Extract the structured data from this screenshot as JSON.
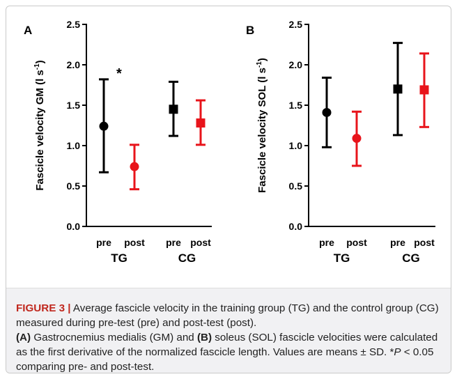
{
  "chart_data": [
    {
      "type": "scatter",
      "panel_label": "A",
      "ylabel_main": "Fascicle velocity GM (l s",
      "ylabel_sup": "-1",
      "ylabel_close": ")",
      "ylim": [
        0.0,
        2.5
      ],
      "yticks": [
        "0.0",
        "0.5",
        "1.0",
        "1.5",
        "2.0",
        "2.5"
      ],
      "groups": [
        "TG",
        "CG"
      ],
      "conditions": [
        "pre",
        "post"
      ],
      "points": [
        {
          "group": "TG",
          "condition": "pre",
          "mean": 1.24,
          "sd_low": 0.67,
          "sd_high": 1.82,
          "color": "#000000",
          "marker": "circle"
        },
        {
          "group": "TG",
          "condition": "post",
          "mean": 0.74,
          "sd_low": 0.46,
          "sd_high": 1.01,
          "color": "#e8141b",
          "marker": "circle"
        },
        {
          "group": "CG",
          "condition": "pre",
          "mean": 1.45,
          "sd_low": 1.12,
          "sd_high": 1.79,
          "color": "#000000",
          "marker": "square"
        },
        {
          "group": "CG",
          "condition": "post",
          "mean": 1.28,
          "sd_low": 1.01,
          "sd_high": 1.56,
          "color": "#e8141b",
          "marker": "square"
        }
      ],
      "annotation": "*"
    },
    {
      "type": "scatter",
      "panel_label": "B",
      "ylabel_main": "Fascicle velocity SOL (l s",
      "ylabel_sup": "-1",
      "ylabel_close": ")",
      "ylim": [
        0.0,
        2.5
      ],
      "yticks": [
        "0.0",
        "0.5",
        "1.0",
        "1.5",
        "2.0",
        "2.5"
      ],
      "groups": [
        "TG",
        "CG"
      ],
      "conditions": [
        "pre",
        "post"
      ],
      "points": [
        {
          "group": "TG",
          "condition": "pre",
          "mean": 1.41,
          "sd_low": 0.98,
          "sd_high": 1.84,
          "color": "#000000",
          "marker": "circle"
        },
        {
          "group": "TG",
          "condition": "post",
          "mean": 1.09,
          "sd_low": 0.75,
          "sd_high": 1.42,
          "color": "#e8141b",
          "marker": "circle"
        },
        {
          "group": "CG",
          "condition": "pre",
          "mean": 1.7,
          "sd_low": 1.13,
          "sd_high": 2.27,
          "color": "#000000",
          "marker": "square"
        },
        {
          "group": "CG",
          "condition": "post",
          "mean": 1.69,
          "sd_low": 1.23,
          "sd_high": 2.14,
          "color": "#e8141b",
          "marker": "square"
        }
      ]
    }
  ],
  "caption": {
    "label": "FIGURE 3 |",
    "line1": " Average fascicle velocity in the training group (TG) and the control group (CG) measured during pre-test (pre) and post-test (post).",
    "a_label": "(A)",
    "a_text": " Gastrocnemius medialis (GM) and ",
    "b_label": "(B)",
    "b_text": " soleus (SOL) fascicle velocities were calculated as the first derivative of the normalized fascicle length. Values are means ± SD. *",
    "p_italic": "P",
    "p_text": " < 0.05 comparing pre- and post-test."
  }
}
